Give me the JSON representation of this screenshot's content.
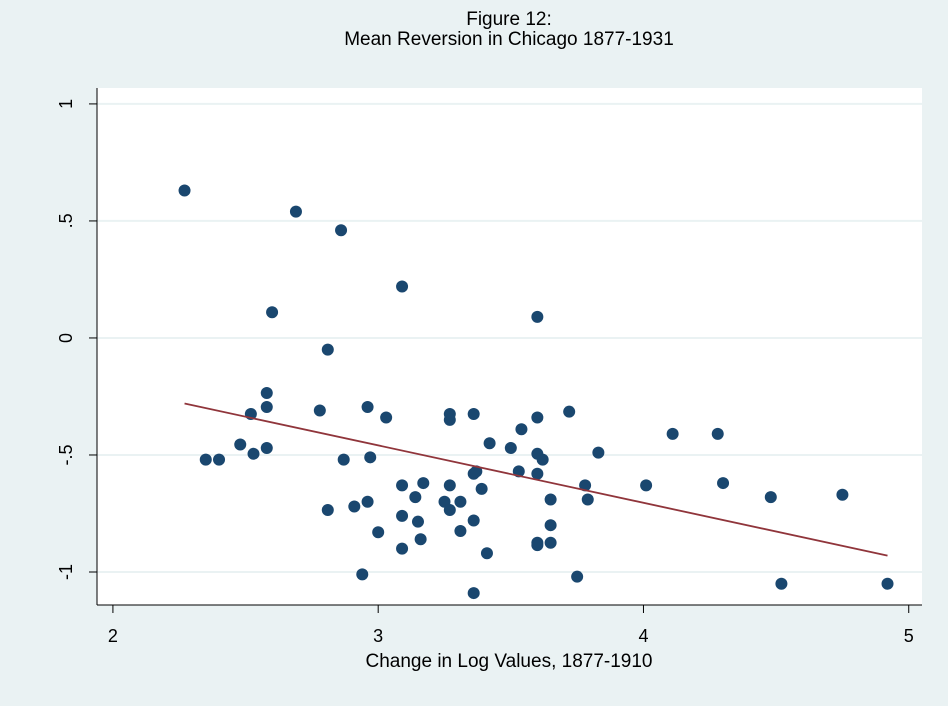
{
  "chart_data": {
    "type": "scatter",
    "title": "Figure 12:",
    "subtitle": "Mean Reversion in Chicago 1877-1931",
    "x_label": "Change in Log Values, 1877-1910",
    "x": [
      2.27,
      2.69,
      2.86,
      3.09,
      2.6,
      3.6,
      2.81,
      2.58,
      2.58,
      2.52,
      2.78,
      2.96,
      3.03,
      3.27,
      3.27,
      3.36,
      3.72,
      3.6,
      3.54,
      3.42,
      4.11,
      4.28,
      2.48,
      2.35,
      2.4,
      2.53,
      2.58,
      2.87,
      2.97,
      3.5,
      3.6,
      3.62,
      3.83,
      3.36,
      3.37,
      3.53,
      3.6,
      3.09,
      3.17,
      3.27,
      3.39,
      3.78,
      4.01,
      4.3,
      3.14,
      3.25,
      3.31,
      2.96,
      3.65,
      3.79,
      4.48,
      4.75,
      2.81,
      2.91,
      3.27,
      3.09,
      3.15,
      3.36,
      3.65,
      3.0,
      3.31,
      3.16,
      3.6,
      3.65,
      3.6,
      3.09,
      3.41,
      2.94,
      3.75,
      4.52,
      4.92,
      3.36
    ],
    "y": [
      0.63,
      0.54,
      0.46,
      0.22,
      0.11,
      0.09,
      -0.05,
      -0.235,
      -0.295,
      -0.325,
      -0.31,
      -0.295,
      -0.34,
      -0.325,
      -0.35,
      -0.325,
      -0.315,
      -0.34,
      -0.39,
      -0.45,
      -0.41,
      -0.41,
      -0.455,
      -0.52,
      -0.52,
      -0.495,
      -0.47,
      -0.52,
      -0.51,
      -0.47,
      -0.495,
      -0.52,
      -0.49,
      -0.58,
      -0.57,
      -0.57,
      -0.58,
      -0.63,
      -0.62,
      -0.63,
      -0.645,
      -0.63,
      -0.63,
      -0.62,
      -0.68,
      -0.7,
      -0.7,
      -0.7,
      -0.69,
      -0.69,
      -0.68,
      -0.67,
      -0.735,
      -0.72,
      -0.735,
      -0.76,
      -0.785,
      -0.78,
      -0.8,
      -0.83,
      -0.825,
      -0.86,
      -0.875,
      -0.875,
      -0.885,
      -0.9,
      -0.92,
      -1.01,
      -1.02,
      -1.05,
      -1.05,
      -1.09
    ],
    "color": "#1a476f",
    "fit_line": {
      "x": [
        2.27,
        4.92
      ],
      "y": [
        -0.28,
        -0.93
      ],
      "color": "#90353b"
    },
    "xlim": [
      1.94,
      5.05
    ],
    "ylim": [
      -1.141,
      1.068
    ],
    "xticks": [
      2,
      3,
      4,
      5
    ],
    "yticks": [
      -1,
      {
        "value": -0.5,
        "label": "-.5"
      },
      0,
      {
        "value": 0.5,
        "label": ".5"
      },
      1
    ],
    "grid": true
  }
}
